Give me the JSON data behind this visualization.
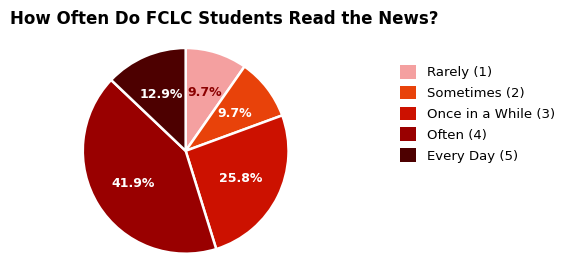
{
  "title": "How Often Do FCLC Students Read the News?",
  "labels": [
    "Rarely (1)",
    "Sometimes (2)",
    "Once in a While (3)",
    "Often (4)",
    "Every Day (5)"
  ],
  "values": [
    9.7,
    9.7,
    25.8,
    41.9,
    12.9
  ],
  "colors": [
    "#F4A0A0",
    "#E8420A",
    "#CC1100",
    "#990000",
    "#4D0000"
  ],
  "pct_labels": [
    "9.7%",
    "9.7%",
    "25.8%",
    "41.9%",
    "12.9%"
  ],
  "pct_colors": [
    "#8B0000",
    "white",
    "white",
    "white",
    "white"
  ],
  "background_color": "#ffffff",
  "title_fontsize": 12,
  "legend_fontsize": 9.5,
  "pct_fontsize": 9
}
